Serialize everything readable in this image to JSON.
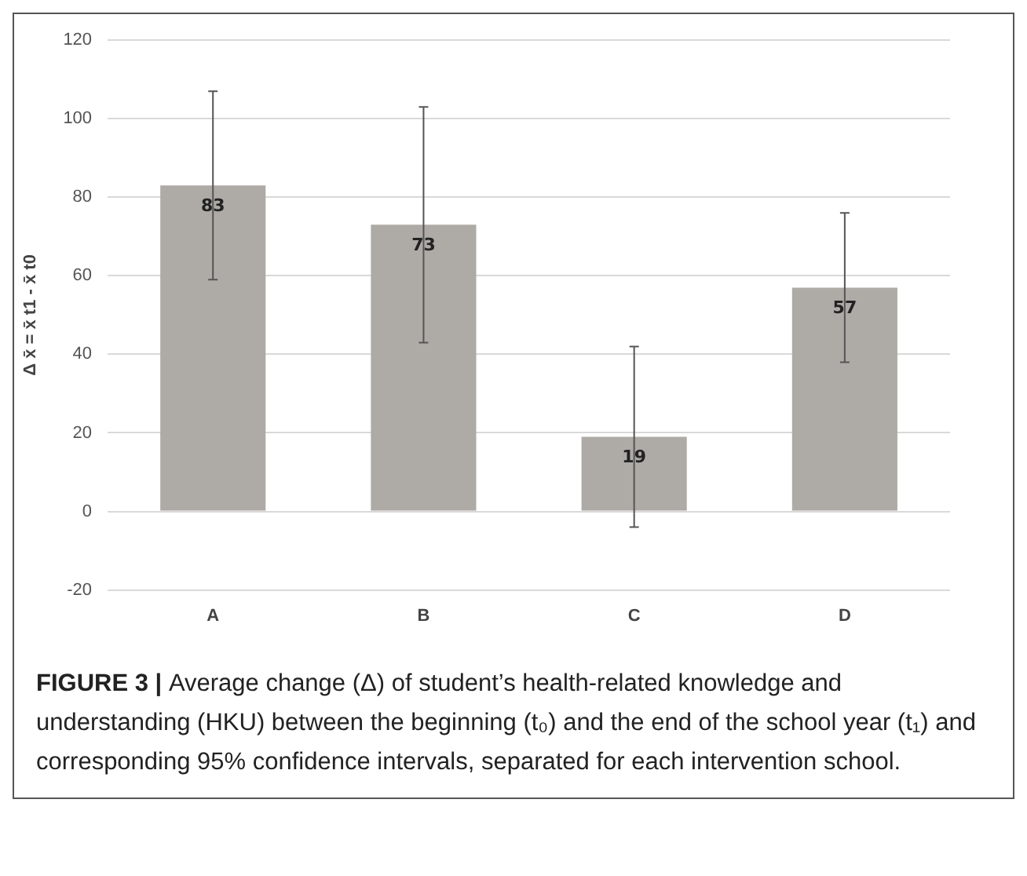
{
  "chart_data": {
    "type": "bar",
    "ylabel": "Δ x̄ = x̄ t1 - x̄ t0",
    "categories": [
      "A",
      "B",
      "C",
      "D"
    ],
    "values": [
      83,
      73,
      19,
      57
    ],
    "errors": [
      [
        59,
        107
      ],
      [
        43,
        103
      ],
      [
        -4,
        42
      ],
      [
        38,
        76
      ]
    ],
    "color": "#aeaaa6",
    "data_labels": true,
    "grid": "y",
    "legend": false,
    "ylim": [
      -20,
      120
    ],
    "yticks": [
      -20,
      0,
      20,
      40,
      60,
      80,
      100,
      120
    ],
    "annotations": [
      "FIGURE 3 |",
      "Average change (Δ) of student’s health-related knowledge and understanding (HKU) between the beginning (t₀) and the end of the school year (t₁) and corresponding 95% confidence intervals, separated for each intervention school."
    ]
  }
}
